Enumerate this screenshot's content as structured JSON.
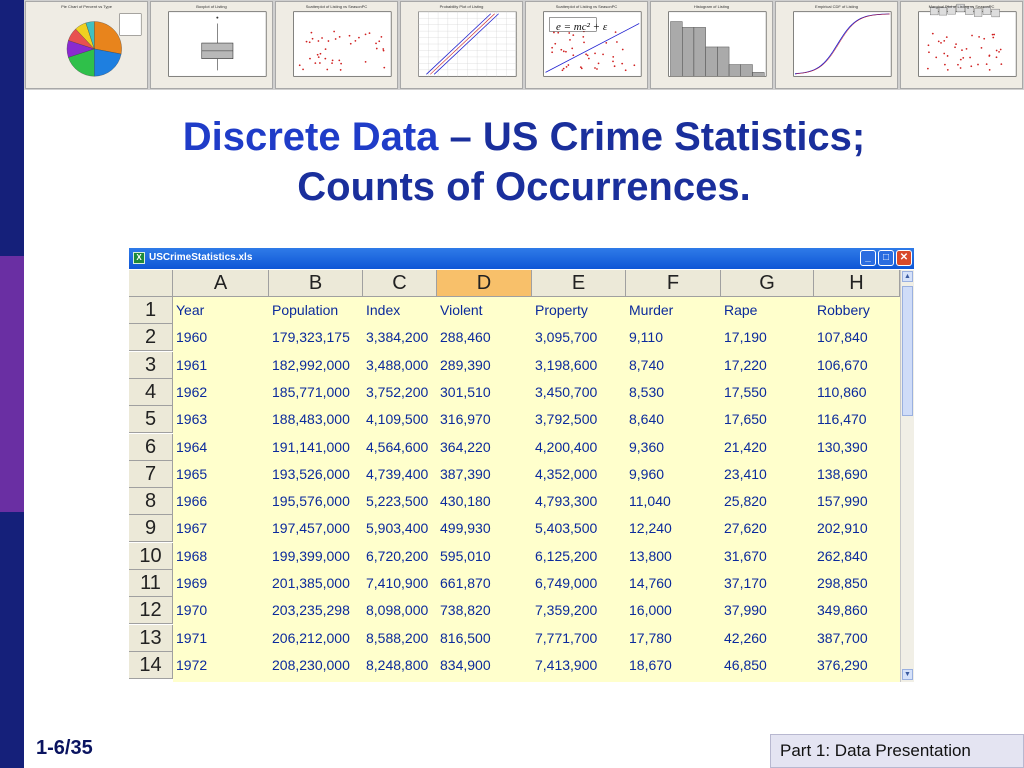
{
  "slide": {
    "title_part1": "Discrete Data",
    "title_part2": " – US Crime Statistics;",
    "title_line2": "Counts of Occurrences.",
    "slide_number": "1-6/35",
    "section_label": "Part 1: Data Presentation"
  },
  "thumbnails": [
    {
      "title": "Pie Chart of Percent vs Type",
      "kind": "pie"
    },
    {
      "title": "Boxplot of Listing",
      "kind": "boxplot"
    },
    {
      "title": "Scatterplot of Listing vs SeasonPC",
      "kind": "scatter"
    },
    {
      "title": "Probability Plot of Listing",
      "kind": "probability"
    },
    {
      "title": "Scatterplot of Listing vs SeasonPC",
      "kind": "regression"
    },
    {
      "title": "Histogram of Listing",
      "kind": "histogram"
    },
    {
      "title": "Empirical CDF of Listing",
      "kind": "cdf"
    },
    {
      "title": "Marginal Plot of Listing vs SeasonPC",
      "kind": "marginal"
    }
  ],
  "equation": "e = mc² + ε",
  "window": {
    "filename": "USCrimeStatistics.xls",
    "selected_column": "D",
    "column_letters": [
      "A",
      "B",
      "C",
      "D",
      "E",
      "F",
      "G",
      "H"
    ],
    "row_numbers": [
      "1",
      "2",
      "3",
      "4",
      "5",
      "6",
      "7",
      "8",
      "9",
      "10",
      "11",
      "12",
      "13",
      "14"
    ],
    "headers": [
      "Year",
      "Population",
      "Index",
      "Violent",
      "Property",
      "Murder",
      "Rape",
      "Robbery"
    ],
    "rows": [
      [
        "1960",
        "179,323,175",
        "3,384,200",
        "288,460",
        "3,095,700",
        "9,110",
        "17,190",
        "107,840"
      ],
      [
        "1961",
        "182,992,000",
        "3,488,000",
        "289,390",
        "3,198,600",
        "8,740",
        "17,220",
        "106,670"
      ],
      [
        "1962",
        "185,771,000",
        "3,752,200",
        "301,510",
        "3,450,700",
        "8,530",
        "17,550",
        "110,860"
      ],
      [
        "1963",
        "188,483,000",
        "4,109,500",
        "316,970",
        "3,792,500",
        "8,640",
        "17,650",
        "116,470"
      ],
      [
        "1964",
        "191,141,000",
        "4,564,600",
        "364,220",
        "4,200,400",
        "9,360",
        "21,420",
        "130,390"
      ],
      [
        "1965",
        "193,526,000",
        "4,739,400",
        "387,390",
        "4,352,000",
        "9,960",
        "23,410",
        "138,690"
      ],
      [
        "1966",
        "195,576,000",
        "5,223,500",
        "430,180",
        "4,793,300",
        "11,040",
        "25,820",
        "157,990"
      ],
      [
        "1967",
        "197,457,000",
        "5,903,400",
        "499,930",
        "5,403,500",
        "12,240",
        "27,620",
        "202,910"
      ],
      [
        "1968",
        "199,399,000",
        "6,720,200",
        "595,010",
        "6,125,200",
        "13,800",
        "31,670",
        "262,840"
      ],
      [
        "1969",
        "201,385,000",
        "7,410,900",
        "661,870",
        "6,749,000",
        "14,760",
        "37,170",
        "298,850"
      ],
      [
        "1970",
        "203,235,298",
        "8,098,000",
        "738,820",
        "7,359,200",
        "16,000",
        "37,990",
        "349,860"
      ],
      [
        "1971",
        "206,212,000",
        "8,588,200",
        "816,500",
        "7,771,700",
        "17,780",
        "42,260",
        "387,700"
      ],
      [
        "1972",
        "208,230,000",
        "8,248,800",
        "834,900",
        "7,413,900",
        "18,670",
        "46,850",
        "376,290"
      ]
    ],
    "icons": {
      "app": "excel-icon",
      "minimize": "minimize-icon",
      "maximize": "maximize-icon",
      "close": "close-icon"
    },
    "glyphs": {
      "app": "X",
      "minimize": "_",
      "maximize": "□",
      "close": "✕",
      "up": "▲",
      "down": "▼"
    }
  },
  "colors": {
    "title": "#1a2f9c",
    "cell_text": "#0b2a9c",
    "cell_background": "#ffffcc",
    "selected_column": "#f8c06a",
    "stripe_dark": "#15207a",
    "stripe_purple": "#6a2fa3"
  }
}
